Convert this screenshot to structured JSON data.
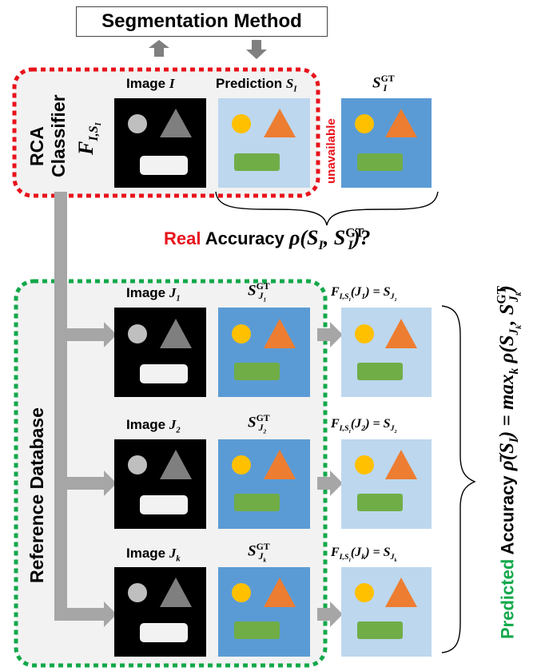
{
  "segmentation_method": "Segmentation Method",
  "rca": {
    "title": "RCA",
    "classifier": "Classifier",
    "classifier_symbol": "F",
    "classifier_sub": "I,S",
    "classifier_subsub": "I"
  },
  "top_row": {
    "image_label": "Image",
    "image_symbol": "I",
    "prediction_label": "Prediction",
    "prediction_symbol": "S",
    "prediction_sub": "I",
    "gt_symbol": "S",
    "gt_sup": "GT",
    "gt_sub": "I",
    "unavailable": "unavailable"
  },
  "real_accuracy": {
    "word_real": "Real",
    "word_accuracy": "Accuracy",
    "formula": "ρ(S",
    "formula_sub": "I",
    "formula_mid": ", S",
    "formula_sup": "GT",
    "formula_sub2": "I",
    "formula_end": ")?"
  },
  "reference_database": "Reference Database",
  "rows": [
    {
      "image_label": "Image",
      "image_symbol": "J",
      "image_sub": "1",
      "gt_sub": "J",
      "gt_subsub": "1",
      "func_arg": "J",
      "func_arg_sub": "1",
      "func_res_sub": "J",
      "func_res_subsub": "1"
    },
    {
      "image_label": "Image",
      "image_symbol": "J",
      "image_sub": "2",
      "gt_sub": "J",
      "gt_subsub": "2",
      "func_arg": "J",
      "func_arg_sub": "2",
      "func_res_sub": "J",
      "func_res_subsub": "2"
    },
    {
      "image_label": "Image",
      "image_symbol": "J",
      "image_sub": "k",
      "gt_sub": "J",
      "gt_subsub": "k",
      "func_arg": "J",
      "func_arg_sub": "k",
      "func_res_sub": "J",
      "func_res_subsub": "k"
    }
  ],
  "predicted_accuracy": {
    "word_predicted": "Predicted",
    "word_accuracy": "Accuracy",
    "formula": "ρ̄(S",
    "formula_sub": "I",
    "formula_mid": ") = max",
    "formula_max_sub": "k",
    "formula_rho": " ρ(S",
    "formula_s_sub": "J",
    "formula_s_subsub": "k",
    "formula_comma": ", S",
    "formula_sup": "GT",
    "formula_sub2": "J",
    "formula_sub2sub": "k",
    "formula_end": ")"
  },
  "colors": {
    "red_dash": "#e8121b",
    "green_dash": "#12a84a",
    "panel_bg": "#f2f2f2",
    "arrow_gray": "#a6a6a6",
    "gt_blue": "#5b9bd5",
    "pred_lightblue": "#bdd7ee",
    "circle_yellow": "#ffc000",
    "triangle_orange": "#ed7d31",
    "rect_green": "#70ad47",
    "image_black": "#000000",
    "image_gray": "#7f7f7f",
    "image_lightgray": "#bfbfbf",
    "image_white": "#f2f2f2"
  },
  "icons": [
    "arrow-up-icon",
    "arrow-down-icon",
    "arrow-right-icon",
    "curly-brace-icon"
  ]
}
